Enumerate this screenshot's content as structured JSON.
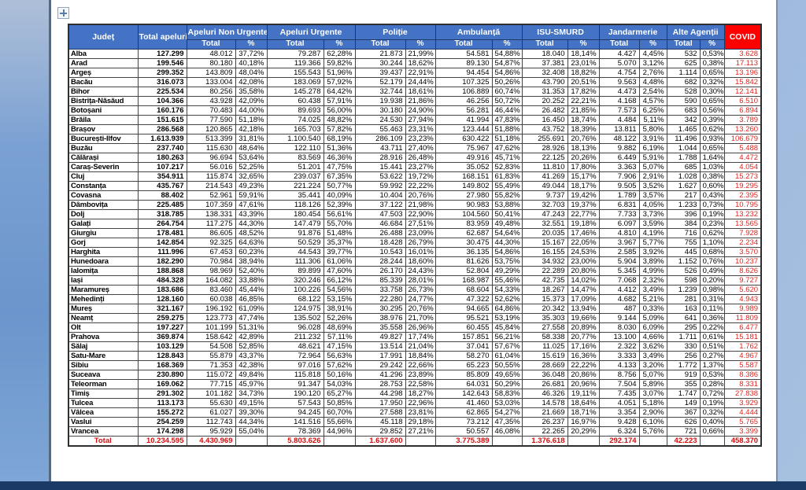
{
  "colors": {
    "header_blue": "#4472c4",
    "header_border": "#1f3864",
    "covid_red": "#ff0000",
    "covid_value_red": "#e0251f",
    "total_row_red": "#d40d0d",
    "bottom_bar_navy": "#1b3a66",
    "page_white": "#ffffff"
  },
  "icons": {
    "move_handle": "table-move-handle"
  },
  "table": {
    "header": {
      "judet": "Județ",
      "total_apeluri": "Total apeluri",
      "groups": [
        {
          "label": "Apeluri Non Urgente"
        },
        {
          "label": "Apeluri Urgente"
        },
        {
          "label": "Poliție"
        },
        {
          "label": "Ambulanță"
        },
        {
          "label": "ISU-SMURD"
        },
        {
          "label": "Jandarmerie"
        },
        {
          "label": "Alte Agenții"
        }
      ],
      "sub_total": "Total",
      "sub_pct": "%",
      "covid": "COVID"
    },
    "rows": [
      [
        "Alba",
        "127.299",
        "48.012",
        "37,72%",
        "79.287",
        "62,28%",
        "21.873",
        "21,99%",
        "54.581",
        "54,88%",
        "18.040",
        "18,14%",
        "4.427",
        "4,45%",
        "532",
        "0,53%",
        "3.628"
      ],
      [
        "Arad",
        "199.546",
        "80.180",
        "40,18%",
        "119.366",
        "59,82%",
        "30.244",
        "18,62%",
        "89.130",
        "54,87%",
        "37.381",
        "23,01%",
        "5.070",
        "3,12%",
        "625",
        "0,38%",
        "17.113"
      ],
      [
        "Argeș",
        "299.352",
        "143.809",
        "48,04%",
        "155.543",
        "51,96%",
        "39.437",
        "22,91%",
        "94.454",
        "54,86%",
        "32.408",
        "18,82%",
        "4.754",
        "2,76%",
        "1.114",
        "0,65%",
        "13.196"
      ],
      [
        "Bacău",
        "316.073",
        "133.004",
        "42,08%",
        "183.069",
        "57,92%",
        "52.179",
        "24,44%",
        "107.325",
        "50,26%",
        "43.790",
        "20,51%",
        "9.563",
        "4,48%",
        "682",
        "0,32%",
        "15.842"
      ],
      [
        "Bihor",
        "225.534",
        "80.256",
        "35,58%",
        "145.278",
        "64,42%",
        "32.744",
        "18,61%",
        "106.889",
        "60,74%",
        "31.353",
        "17,82%",
        "4.473",
        "2,54%",
        "528",
        "0,30%",
        "12.141"
      ],
      [
        "Bistrița-Năsăud",
        "104.366",
        "43.928",
        "42,09%",
        "60.438",
        "57,91%",
        "19.938",
        "21,86%",
        "46.256",
        "50,72%",
        "20.252",
        "22,21%",
        "4.168",
        "4,57%",
        "590",
        "0,65%",
        "6.510"
      ],
      [
        "Botoșani",
        "160.176",
        "70.483",
        "44,00%",
        "89.693",
        "56,00%",
        "30.180",
        "24,90%",
        "56.281",
        "46,44%",
        "26.482",
        "21,85%",
        "7.573",
        "6,25%",
        "683",
        "0,56%",
        "6.894"
      ],
      [
        "Brăila",
        "151.615",
        "77.590",
        "51,18%",
        "74.025",
        "48,82%",
        "24.530",
        "27,94%",
        "41.994",
        "47,83%",
        "16.450",
        "18,74%",
        "4.484",
        "5,11%",
        "342",
        "0,39%",
        "3.789"
      ],
      [
        "Brașov",
        "286.568",
        "120.865",
        "42,18%",
        "165.703",
        "57,82%",
        "55.463",
        "23,31%",
        "123.444",
        "51,88%",
        "43.752",
        "18,39%",
        "13.811",
        "5,80%",
        "1.465",
        "0,62%",
        "13.260"
      ],
      [
        "București-Ilfov",
        "1.613.939",
        "513.399",
        "31,81%",
        "1.100.540",
        "68,19%",
        "286.109",
        "23,23%",
        "630.422",
        "51,18%",
        "255.691",
        "20,76%",
        "48.122",
        "3,91%",
        "11.496",
        "0,93%",
        "106.679"
      ],
      [
        "Buzău",
        "237.740",
        "115.630",
        "48,64%",
        "122.110",
        "51,36%",
        "43.711",
        "27,40%",
        "75.967",
        "47,62%",
        "28.926",
        "18,13%",
        "9.882",
        "6,19%",
        "1.044",
        "0,65%",
        "5.488"
      ],
      [
        "Călărași",
        "180.263",
        "96.694",
        "53,64%",
        "83.569",
        "46,36%",
        "28.916",
        "26,48%",
        "49.916",
        "45,71%",
        "22.125",
        "20,26%",
        "6.449",
        "5,91%",
        "1.788",
        "1,64%",
        "4.472"
      ],
      [
        "Caraș-Severin",
        "107.217",
        "56.016",
        "52,25%",
        "51.201",
        "47,75%",
        "15.441",
        "23,27%",
        "35.052",
        "52,83%",
        "11.810",
        "17,80%",
        "3.363",
        "5,07%",
        "685",
        "1,03%",
        "4.054"
      ],
      [
        "Cluj",
        "354.911",
        "115.874",
        "32,65%",
        "239.037",
        "67,35%",
        "53.622",
        "19,72%",
        "168.151",
        "61,83%",
        "41.269",
        "15,17%",
        "7.906",
        "2,91%",
        "1.028",
        "0,38%",
        "15.273"
      ],
      [
        "Constanța",
        "435.767",
        "214.543",
        "49,23%",
        "221.224",
        "50,77%",
        "59.992",
        "22,22%",
        "149.802",
        "55,49%",
        "49.044",
        "18,17%",
        "9.505",
        "3,52%",
        "1.627",
        "0,60%",
        "19.295"
      ],
      [
        "Covasna",
        "88.402",
        "52.961",
        "59,91%",
        "35.441",
        "40,09%",
        "10.404",
        "20,76%",
        "27.980",
        "55,82%",
        "9.737",
        "19,42%",
        "1.789",
        "3,57%",
        "217",
        "0,43%",
        "2.395"
      ],
      [
        "Dâmbovița",
        "225.485",
        "107.359",
        "47,61%",
        "118.126",
        "52,39%",
        "37.122",
        "21,98%",
        "90.983",
        "53,88%",
        "32.703",
        "19,37%",
        "6.831",
        "4,05%",
        "1.233",
        "0,73%",
        "10.795"
      ],
      [
        "Dolj",
        "318.785",
        "138.331",
        "43,39%",
        "180.454",
        "56,61%",
        "47.503",
        "22,90%",
        "104.560",
        "50,41%",
        "47.243",
        "22,77%",
        "7.733",
        "3,73%",
        "396",
        "0,19%",
        "13.232"
      ],
      [
        "Galați",
        "264.754",
        "117.275",
        "44,30%",
        "147.479",
        "55,70%",
        "46.684",
        "27,51%",
        "83.959",
        "49,48%",
        "32.551",
        "19,18%",
        "6.097",
        "3,59%",
        "384",
        "0,23%",
        "13.565"
      ],
      [
        "Giurgiu",
        "178.481",
        "86.605",
        "48,52%",
        "91.876",
        "51,48%",
        "26.488",
        "23,09%",
        "62.687",
        "54,64%",
        "20.035",
        "17,46%",
        "4.810",
        "4,19%",
        "716",
        "0,62%",
        "7.928"
      ],
      [
        "Gorj",
        "142.854",
        "92.325",
        "64,63%",
        "50.529",
        "35,37%",
        "18.428",
        "26,79%",
        "30.475",
        "44,30%",
        "15.167",
        "22,05%",
        "3.967",
        "5,77%",
        "755",
        "1,10%",
        "2.234"
      ],
      [
        "Harghita",
        "111.996",
        "67.453",
        "60,23%",
        "44.543",
        "39,77%",
        "10.543",
        "16,01%",
        "36.135",
        "54,86%",
        "16.155",
        "24,53%",
        "2.585",
        "3,92%",
        "445",
        "0,68%",
        "3.570"
      ],
      [
        "Hunedoara",
        "182.290",
        "70.984",
        "38,94%",
        "111.306",
        "61,06%",
        "28.244",
        "18,60%",
        "81.626",
        "53,75%",
        "34.932",
        "23,00%",
        "5.904",
        "3,89%",
        "1.152",
        "0,76%",
        "10.237"
      ],
      [
        "Ialomița",
        "188.868",
        "98.969",
        "52,40%",
        "89.899",
        "47,60%",
        "26.170",
        "24,43%",
        "52.804",
        "49,29%",
        "22.289",
        "20,80%",
        "5.345",
        "4,99%",
        "526",
        "0,49%",
        "8.626"
      ],
      [
        "Iași",
        "484.328",
        "164.082",
        "33,88%",
        "320.246",
        "66,12%",
        "85.339",
        "28,01%",
        "168.987",
        "55,46%",
        "42.735",
        "14,02%",
        "7.068",
        "2,32%",
        "598",
        "0,20%",
        "9.727"
      ],
      [
        "Maramureș",
        "183.686",
        "83.460",
        "45,44%",
        "100.226",
        "54,56%",
        "33.758",
        "26,73%",
        "68.604",
        "54,33%",
        "18.267",
        "14,47%",
        "4.412",
        "3,49%",
        "1.239",
        "0,98%",
        "5.620"
      ],
      [
        "Mehedinți",
        "128.160",
        "60.038",
        "46,85%",
        "68.122",
        "53,15%",
        "22.280",
        "24,77%",
        "47.322",
        "52,62%",
        "15.373",
        "17,09%",
        "4.682",
        "5,21%",
        "281",
        "0,31%",
        "4.943"
      ],
      [
        "Mureș",
        "321.167",
        "196.192",
        "61,09%",
        "124.975",
        "38,91%",
        "30.295",
        "20,76%",
        "94.665",
        "64,86%",
        "20.342",
        "13,94%",
        "487",
        "0,33%",
        "163",
        "0,11%",
        "9.989"
      ],
      [
        "Neamț",
        "259.275",
        "123.773",
        "47,74%",
        "135.502",
        "52,26%",
        "38.976",
        "21,70%",
        "95.521",
        "53,19%",
        "35.303",
        "19,66%",
        "9.144",
        "5,09%",
        "641",
        "0,36%",
        "11.809"
      ],
      [
        "Olt",
        "197.227",
        "101.199",
        "51,31%",
        "96.028",
        "48,69%",
        "35.558",
        "26,96%",
        "60.455",
        "45,84%",
        "27.558",
        "20,89%",
        "8.030",
        "6,09%",
        "295",
        "0,22%",
        "6.477"
      ],
      [
        "Prahova",
        "369.874",
        "158.642",
        "42,89%",
        "211.232",
        "57,11%",
        "49.827",
        "17,74%",
        "157.851",
        "56,21%",
        "58.338",
        "20,77%",
        "13.100",
        "4,66%",
        "1.711",
        "0,61%",
        "15.181"
      ],
      [
        "Sălaj",
        "103.129",
        "54.508",
        "52,85%",
        "48.621",
        "47,15%",
        "13.514",
        "21,04%",
        "37.041",
        "57,67%",
        "11.025",
        "17,16%",
        "2.322",
        "3,62%",
        "330",
        "0,51%",
        "1.762"
      ],
      [
        "Satu-Mare",
        "128.843",
        "55.879",
        "43,37%",
        "72.964",
        "56,63%",
        "17.991",
        "18,84%",
        "58.270",
        "61,04%",
        "15.619",
        "16,36%",
        "3.333",
        "3,49%",
        "256",
        "0,27%",
        "4.967"
      ],
      [
        "Sibiu",
        "168.369",
        "71.353",
        "42,38%",
        "97.016",
        "57,62%",
        "29.242",
        "22,66%",
        "65.223",
        "50,55%",
        "28.669",
        "22,22%",
        "4.133",
        "3,20%",
        "1.772",
        "1,37%",
        "5.587"
      ],
      [
        "Suceava",
        "230.890",
        "115.072",
        "49,84%",
        "115.818",
        "50,16%",
        "41.296",
        "23,89%",
        "85.809",
        "49,65%",
        "36.048",
        "20,86%",
        "8.756",
        "5,07%",
        "919",
        "0,53%",
        "8.386"
      ],
      [
        "Teleorman",
        "169.062",
        "77.715",
        "45,97%",
        "91.347",
        "54,03%",
        "28.753",
        "22,58%",
        "64.031",
        "50,29%",
        "26.681",
        "20,96%",
        "7.504",
        "5,89%",
        "355",
        "0,28%",
        "8.331"
      ],
      [
        "Timiș",
        "291.302",
        "101.182",
        "34,73%",
        "190.120",
        "65,27%",
        "44.298",
        "18,27%",
        "142.643",
        "58,83%",
        "46.326",
        "19,11%",
        "7.435",
        "3,07%",
        "1.747",
        "0,72%",
        "27.838"
      ],
      [
        "Tulcea",
        "113.173",
        "55.630",
        "49,15%",
        "57.543",
        "50,85%",
        "17.950",
        "22,96%",
        "41.460",
        "53,03%",
        "14.578",
        "18,64%",
        "4.051",
        "5,18%",
        "149",
        "0,19%",
        "3.929"
      ],
      [
        "Vâlcea",
        "155.272",
        "61.027",
        "39,30%",
        "94.245",
        "60,70%",
        "27.588",
        "23,81%",
        "62.865",
        "54,27%",
        "21.669",
        "18,71%",
        "3.354",
        "2,90%",
        "367",
        "0,32%",
        "4.444"
      ],
      [
        "Vaslui",
        "254.259",
        "112.743",
        "44,34%",
        "141.516",
        "55,66%",
        "45.118",
        "29,18%",
        "73.212",
        "47,35%",
        "26.237",
        "16,97%",
        "9.428",
        "6,10%",
        "626",
        "0,40%",
        "5.765"
      ],
      [
        "Vrancea",
        "174.298",
        "95.929",
        "55,04%",
        "78.369",
        "44,96%",
        "29.852",
        "27,21%",
        "50.557",
        "46,08%",
        "22.265",
        "20,29%",
        "6.324",
        "5,76%",
        "721",
        "0,66%",
        "3.399"
      ]
    ],
    "total_row": [
      "Total",
      "10.234.595",
      "4.430.969",
      "",
      "5.803.626",
      "",
      "1.637.600",
      "",
      "3.775.389",
      "",
      "1.376.618",
      "",
      "292.174",
      "",
      "42.223",
      "",
      "458.370"
    ]
  }
}
